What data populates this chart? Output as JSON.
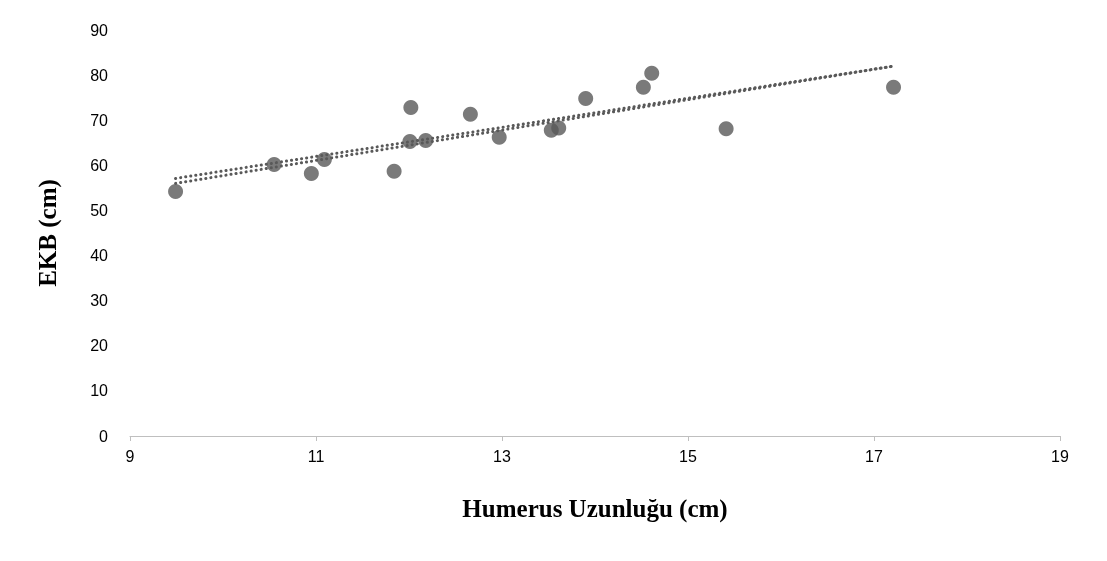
{
  "chart_data": {
    "type": "scatter",
    "xlabel": "Humerus Uzunluğu (cm)",
    "ylabel": "EKB (cm)",
    "xlim": [
      9,
      19
    ],
    "xticks": [
      9,
      11,
      13,
      15,
      17,
      19
    ],
    "ylim": [
      0,
      90
    ],
    "yticks": [
      0,
      10,
      20,
      30,
      40,
      50,
      60,
      70,
      80,
      90
    ],
    "grid": false,
    "marker": "circle",
    "series": [
      {
        "color": "#595959",
        "x": [
          9.49,
          10.55,
          10.95,
          11.09,
          11.84,
          12.02,
          12.01,
          12.18,
          12.66,
          12.97,
          13.53,
          13.61,
          13.9,
          14.52,
          14.61,
          15.41,
          17.21
        ],
        "values": [
          54.2,
          60.2,
          58.2,
          61.3,
          58.7,
          72.8,
          65.3,
          65.5,
          71.3,
          66.2,
          67.8,
          68.3,
          74.8,
          77.3,
          80.4,
          68.1,
          77.3
        ]
      },
      {
        "type": "line",
        "color": "#595959",
        "line_style": "dotted",
        "marker": "none",
        "x": [
          9.49,
          17.21
        ],
        "values": [
          57.1,
          82
        ]
      },
      {
        "type": "line",
        "color": "#595959",
        "line_style": "dotted",
        "marker": "none",
        "x": [
          9.49,
          17.21
        ],
        "values": [
          56,
          82
        ]
      }
    ]
  }
}
